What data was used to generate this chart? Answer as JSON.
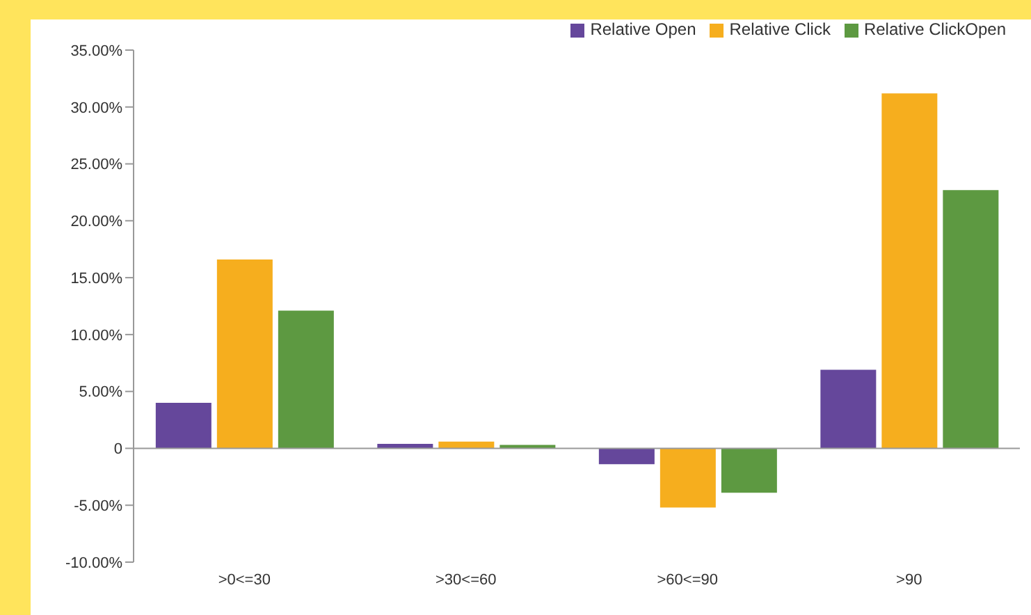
{
  "chart_data": {
    "type": "bar",
    "categories": [
      ">0<=30",
      ">30<=60",
      ">60<=90",
      ">90"
    ],
    "series": [
      {
        "name": "Relative Open",
        "color": "#65479b",
        "values": [
          4.0,
          0.4,
          -1.4,
          6.9
        ]
      },
      {
        "name": "Relative Click",
        "color": "#f6ae1e",
        "values": [
          16.6,
          0.6,
          -5.2,
          31.2
        ]
      },
      {
        "name": "Relative ClickOpen",
        "color": "#5d9941",
        "values": [
          12.1,
          0.3,
          -3.9,
          22.7
        ]
      }
    ],
    "ylim": [
      -10,
      35
    ],
    "yticks": [
      {
        "value": -10,
        "label": "-10.00%"
      },
      {
        "value": -5,
        "label": "-5.00%"
      },
      {
        "value": 0,
        "label": "0"
      },
      {
        "value": 5,
        "label": "5.00%"
      },
      {
        "value": 10,
        "label": "10.00%"
      },
      {
        "value": 15,
        "label": "15.00%"
      },
      {
        "value": 20,
        "label": "20.00%"
      },
      {
        "value": 25,
        "label": "25.00%"
      },
      {
        "value": 30,
        "label": "30.00%"
      },
      {
        "value": 35,
        "label": "35.00%"
      }
    ],
    "ref_lines": [
      {
        "axis": "y",
        "value": 0,
        "color": "#999999"
      }
    ],
    "grid": false,
    "legend": "top right"
  }
}
